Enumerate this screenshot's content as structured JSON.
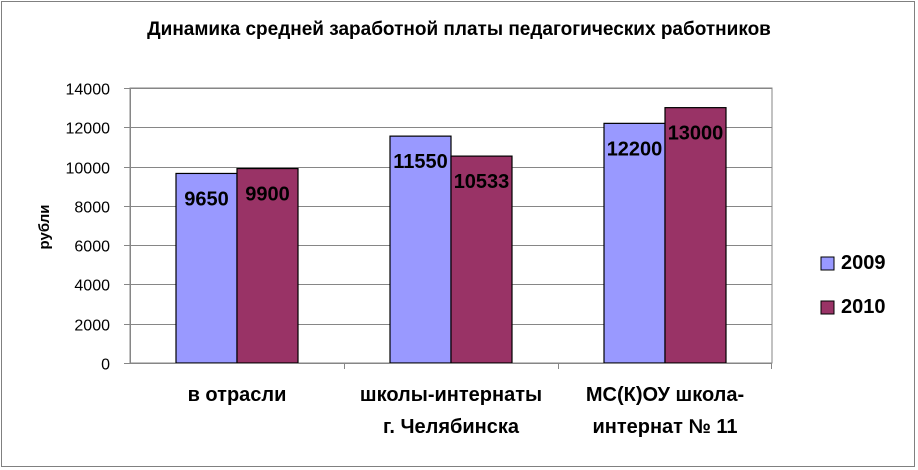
{
  "chart_data": {
    "type": "bar",
    "title": "Динамика средней заработной платы педагогических работников",
    "xlabel": "",
    "ylabel": "рубли",
    "ylim": [
      0,
      14000
    ],
    "yticks": [
      0,
      2000,
      4000,
      6000,
      8000,
      10000,
      12000,
      14000
    ],
    "grid": true,
    "legend_position": "right",
    "categories": [
      [
        "в отрасли"
      ],
      [
        "школы-интернаты",
        "г. Челябинска"
      ],
      [
        "МС(К)ОУ школа-",
        "интернат № 11"
      ]
    ],
    "series": [
      {
        "name": "2009",
        "color": "#9999ff",
        "values": [
          9650,
          11550,
          12200
        ],
        "labels": [
          "9650",
          "11550",
          "12200"
        ]
      },
      {
        "name": "2010",
        "color": "#993366",
        "values": [
          9900,
          10533,
          13000
        ],
        "labels": [
          "9900",
          "10533",
          "13000"
        ]
      }
    ]
  }
}
